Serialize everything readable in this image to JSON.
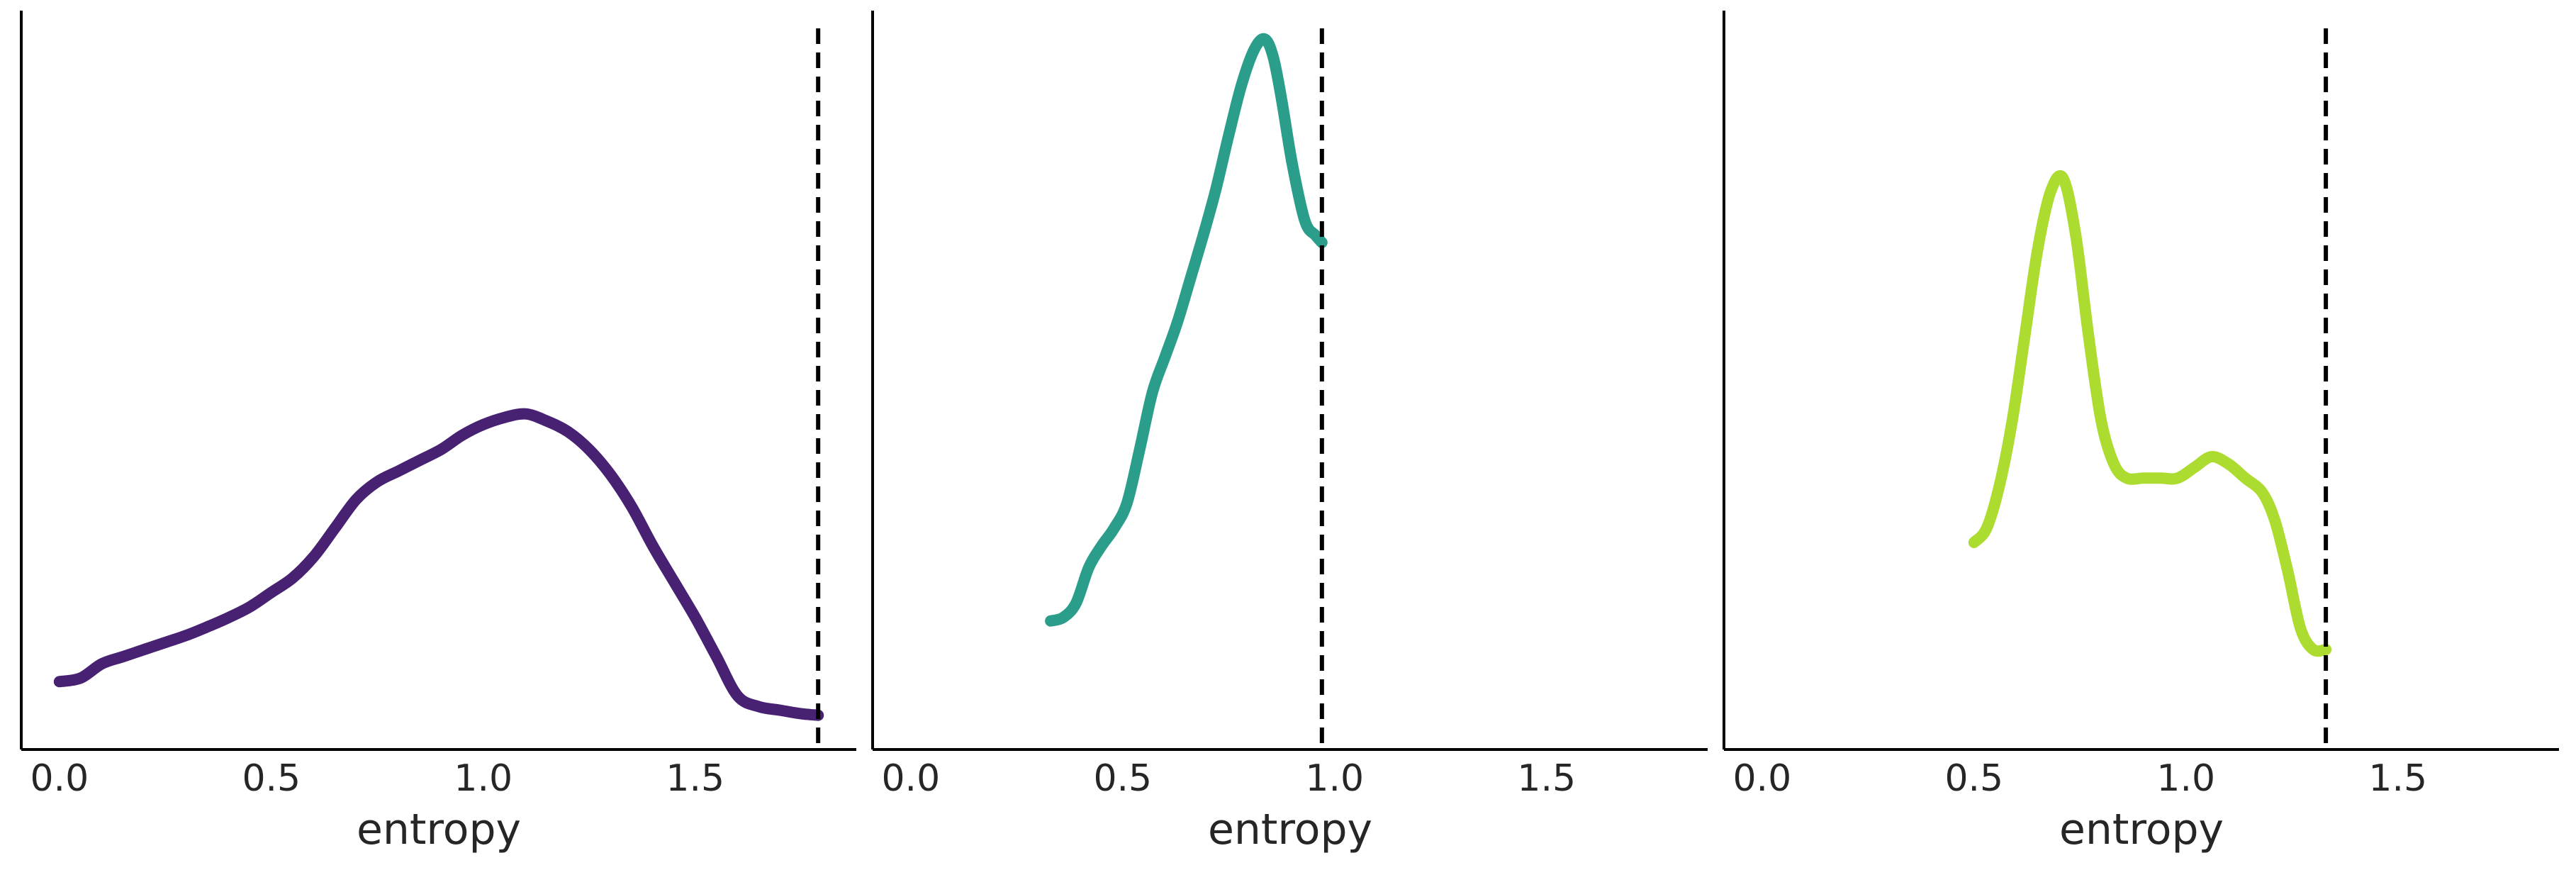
{
  "chart_data": [
    {
      "type": "line",
      "xlabel": "entropy",
      "ylabel": "",
      "xlim": [
        -0.09,
        1.88
      ],
      "ylim": [
        0,
        1.0
      ],
      "x_ticks": [
        0.0,
        0.5,
        1.0,
        1.5
      ],
      "x_tick_labels": [
        "0.0",
        "0.5",
        "1.0",
        "1.5"
      ],
      "grid": false,
      "y_ticks_visible": false,
      "reference_line_x": 1.79,
      "color": "#482173",
      "series": [
        {
          "x": [
            0.0,
            0.05,
            0.1,
            0.15,
            0.2,
            0.25,
            0.3,
            0.35,
            0.4,
            0.45,
            0.5,
            0.55,
            0.6,
            0.65,
            0.7,
            0.75,
            0.8,
            0.85,
            0.9,
            0.95,
            1.0,
            1.05,
            1.1,
            1.15,
            1.2,
            1.25,
            1.3,
            1.35,
            1.4,
            1.45,
            1.5,
            1.55,
            1.6,
            1.65,
            1.7,
            1.75,
            1.79
          ],
          "y": [
            0.095,
            0.1,
            0.12,
            0.13,
            0.14,
            0.15,
            0.16,
            0.172,
            0.185,
            0.2,
            0.22,
            0.24,
            0.27,
            0.31,
            0.35,
            0.375,
            0.39,
            0.405,
            0.42,
            0.44,
            0.455,
            0.465,
            0.47,
            0.46,
            0.445,
            0.42,
            0.385,
            0.34,
            0.285,
            0.235,
            0.185,
            0.13,
            0.075,
            0.06,
            0.055,
            0.05,
            0.048
          ]
        }
      ]
    },
    {
      "type": "line",
      "xlabel": "entropy",
      "ylabel": "",
      "xlim": [
        -0.09,
        1.88
      ],
      "ylim": [
        0,
        1.0
      ],
      "x_ticks": [
        0.0,
        0.5,
        1.0,
        1.5
      ],
      "x_tick_labels": [
        "0.0",
        "0.5",
        "1.0",
        "1.5"
      ],
      "grid": false,
      "y_ticks_visible": false,
      "reference_line_x": 0.97,
      "color": "#2a9e8a",
      "series": [
        {
          "x": [
            0.33,
            0.36,
            0.39,
            0.42,
            0.45,
            0.48,
            0.51,
            0.54,
            0.57,
            0.6,
            0.63,
            0.66,
            0.69,
            0.72,
            0.75,
            0.78,
            0.81,
            0.835,
            0.855,
            0.875,
            0.9,
            0.93,
            0.955,
            0.97
          ],
          "y": [
            0.18,
            0.185,
            0.205,
            0.255,
            0.285,
            0.31,
            0.345,
            0.42,
            0.5,
            0.55,
            0.6,
            0.66,
            0.72,
            0.785,
            0.86,
            0.93,
            0.98,
            0.995,
            0.97,
            0.91,
            0.82,
            0.74,
            0.72,
            0.71
          ]
        }
      ]
    },
    {
      "type": "line",
      "xlabel": "entropy",
      "ylabel": "",
      "xlim": [
        -0.09,
        1.88
      ],
      "ylim": [
        0,
        1.0
      ],
      "x_ticks": [
        0.0,
        0.5,
        1.0,
        1.5
      ],
      "x_tick_labels": [
        "0.0",
        "0.5",
        "1.0",
        "1.5"
      ],
      "grid": false,
      "y_ticks_visible": false,
      "reference_line_x": 1.33,
      "color": "#addc30",
      "series": [
        {
          "x": [
            0.5,
            0.53,
            0.56,
            0.59,
            0.62,
            0.65,
            0.68,
            0.71,
            0.74,
            0.77,
            0.8,
            0.83,
            0.86,
            0.9,
            0.94,
            0.98,
            1.02,
            1.06,
            1.1,
            1.14,
            1.18,
            1.21,
            1.24,
            1.27,
            1.3,
            1.33
          ],
          "y": [
            0.29,
            0.31,
            0.37,
            0.46,
            0.58,
            0.7,
            0.78,
            0.8,
            0.72,
            0.58,
            0.46,
            0.4,
            0.38,
            0.38,
            0.38,
            0.38,
            0.395,
            0.41,
            0.4,
            0.38,
            0.36,
            0.32,
            0.25,
            0.17,
            0.14,
            0.14
          ]
        }
      ]
    }
  ]
}
